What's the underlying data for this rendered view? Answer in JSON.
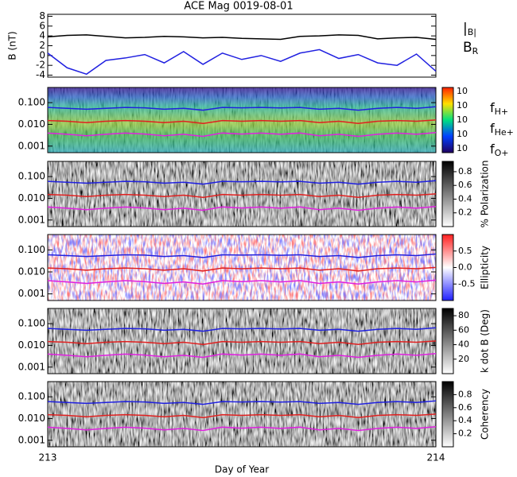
{
  "chart_data": [
    {
      "type": "line",
      "title": "ACE Mag 0019-08-01",
      "ylabel": "B (nT)",
      "x": [
        213,
        213.05,
        213.1,
        213.15,
        213.2,
        213.25,
        213.3,
        213.35,
        213.4,
        213.45,
        213.5,
        213.55,
        213.6,
        213.65,
        213.7,
        213.75,
        213.8,
        213.85,
        213.9,
        213.95,
        214
      ],
      "xlim": [
        213,
        214
      ],
      "ylim": [
        -4.4,
        8.4
      ],
      "yticks": [
        -4,
        -2,
        0,
        2,
        4,
        6,
        8
      ],
      "series": [
        {
          "name": "|B|",
          "color": "#000000",
          "values": [
            3.8,
            4.1,
            4.2,
            3.9,
            3.6,
            3.7,
            3.9,
            3.8,
            3.6,
            3.7,
            3.5,
            3.4,
            3.3,
            3.9,
            4.0,
            4.2,
            4.1,
            3.4,
            3.6,
            3.7,
            3.3
          ]
        },
        {
          "name": "BR",
          "color": "#2020e0",
          "values": [
            0.5,
            -2.5,
            -3.8,
            -1.0,
            -0.5,
            0.2,
            -1.5,
            0.8,
            -1.8,
            0.5,
            -0.8,
            0,
            -1.2,
            0.5,
            1.2,
            -0.6,
            0.2,
            -1.5,
            -2.0,
            0.3,
            -3.2
          ]
        }
      ]
    },
    {
      "type": "spectrogram",
      "log": true,
      "ylim": [
        0.0005,
        0.5
      ],
      "yticks": [
        {
          "value": 0.1,
          "label": "0.100"
        },
        {
          "value": 0.01,
          "label": "0.010"
        },
        0.001
      ],
      "ztick_labels": [
        "10",
        "10",
        "10",
        "10",
        "10"
      ],
      "colormap": "rainbow",
      "series": [
        {
          "name": "fH+",
          "color": "#2020e0",
          "values": [
            0.06,
            0.055,
            0.05,
            0.055,
            0.06,
            0.058,
            0.05,
            0.055,
            0.045,
            0.06,
            0.058,
            0.06,
            0.057,
            0.06,
            0.05,
            0.055,
            0.045,
            0.055,
            0.06,
            0.055,
            0.065
          ]
        },
        {
          "name": "fHe+",
          "color": "#e02020",
          "values": [
            0.015,
            0.014,
            0.012,
            0.014,
            0.015,
            0.014,
            0.012,
            0.014,
            0.011,
            0.015,
            0.014,
            0.015,
            0.014,
            0.015,
            0.012,
            0.014,
            0.011,
            0.014,
            0.015,
            0.014,
            0.016
          ]
        },
        {
          "name": "fO+",
          "color": "#e020e0",
          "values": [
            0.004,
            0.0035,
            0.003,
            0.0035,
            0.004,
            0.0036,
            0.003,
            0.0035,
            0.0028,
            0.004,
            0.0036,
            0.004,
            0.0035,
            0.004,
            0.003,
            0.0035,
            0.0028,
            0.0035,
            0.004,
            0.0035,
            0.0042
          ]
        }
      ]
    },
    {
      "type": "spectrogram",
      "log": true,
      "ylim": [
        0.0005,
        0.5
      ],
      "yticks": [
        {
          "value": 0.1,
          "label": "0.100"
        },
        {
          "value": 0.01,
          "label": "0.010"
        },
        0.001
      ],
      "zlabel": "% Polarization",
      "zlim": [
        0,
        0.95
      ],
      "zticks": [
        0.2,
        0.4,
        0.6,
        0.8
      ],
      "colormap": "gray",
      "series": [
        {
          "name": "fH+",
          "color": "#2020e0",
          "values": [
            0.06,
            0.055,
            0.05,
            0.055,
            0.06,
            0.058,
            0.05,
            0.055,
            0.045,
            0.06,
            0.058,
            0.06,
            0.057,
            0.06,
            0.05,
            0.055,
            0.045,
            0.055,
            0.06,
            0.055,
            0.065
          ]
        },
        {
          "name": "fHe+",
          "color": "#e02020",
          "values": [
            0.015,
            0.014,
            0.012,
            0.014,
            0.015,
            0.014,
            0.012,
            0.014,
            0.011,
            0.015,
            0.014,
            0.015,
            0.014,
            0.015,
            0.012,
            0.014,
            0.011,
            0.014,
            0.015,
            0.014,
            0.016
          ]
        },
        {
          "name": "fO+",
          "color": "#e020e0",
          "values": [
            0.004,
            0.0035,
            0.003,
            0.0035,
            0.004,
            0.0036,
            0.003,
            0.0035,
            0.0028,
            0.004,
            0.0036,
            0.004,
            0.0035,
            0.004,
            0.003,
            0.0035,
            0.0028,
            0.0035,
            0.004,
            0.0035,
            0.0042
          ]
        }
      ]
    },
    {
      "type": "spectrogram",
      "log": true,
      "ylim": [
        0.0005,
        0.5
      ],
      "yticks": [
        {
          "value": 0.1,
          "label": "0.100"
        },
        {
          "value": 0.01,
          "label": "0.010"
        },
        0.001
      ],
      "zlabel": "Ellipticity",
      "zlim": [
        -1,
        1
      ],
      "zticks": [
        -0.5,
        {
          "value": 0,
          "label": "0.0"
        },
        0.5
      ],
      "colormap": "redblue",
      "series": [
        {
          "name": "fH+",
          "color": "#2020e0",
          "values": [
            0.06,
            0.055,
            0.05,
            0.055,
            0.06,
            0.058,
            0.05,
            0.055,
            0.045,
            0.06,
            0.058,
            0.06,
            0.057,
            0.06,
            0.05,
            0.055,
            0.045,
            0.055,
            0.06,
            0.055,
            0.065
          ]
        },
        {
          "name": "fHe+",
          "color": "#e02020",
          "values": [
            0.015,
            0.014,
            0.012,
            0.014,
            0.015,
            0.014,
            0.012,
            0.014,
            0.011,
            0.015,
            0.014,
            0.015,
            0.014,
            0.015,
            0.012,
            0.014,
            0.011,
            0.014,
            0.015,
            0.014,
            0.016
          ]
        },
        {
          "name": "fO+",
          "color": "#e020e0",
          "values": [
            0.004,
            0.0035,
            0.003,
            0.0035,
            0.004,
            0.0036,
            0.003,
            0.0035,
            0.0028,
            0.004,
            0.0036,
            0.004,
            0.0035,
            0.004,
            0.003,
            0.0035,
            0.0028,
            0.0035,
            0.004,
            0.0035,
            0.0042
          ]
        }
      ]
    },
    {
      "type": "spectrogram",
      "log": true,
      "ylim": [
        0.0005,
        0.5
      ],
      "yticks": [
        {
          "value": 0.1,
          "label": "0.100"
        },
        {
          "value": 0.01,
          "label": "0.010"
        },
        0.001
      ],
      "zlabel": "k dot B (Deg)",
      "zlim": [
        0,
        90
      ],
      "zticks": [
        20,
        40,
        60,
        80
      ],
      "colormap": "gray",
      "series": [
        {
          "name": "fH+",
          "color": "#2020e0",
          "values": [
            0.06,
            0.055,
            0.05,
            0.055,
            0.06,
            0.058,
            0.05,
            0.055,
            0.045,
            0.06,
            0.058,
            0.06,
            0.057,
            0.06,
            0.05,
            0.055,
            0.045,
            0.055,
            0.06,
            0.055,
            0.065
          ]
        },
        {
          "name": "fHe+",
          "color": "#e02020",
          "values": [
            0.015,
            0.014,
            0.012,
            0.014,
            0.015,
            0.014,
            0.012,
            0.014,
            0.011,
            0.015,
            0.014,
            0.015,
            0.014,
            0.015,
            0.012,
            0.014,
            0.011,
            0.014,
            0.015,
            0.014,
            0.016
          ]
        },
        {
          "name": "fO+",
          "color": "#e020e0",
          "values": [
            0.004,
            0.0035,
            0.003,
            0.0035,
            0.004,
            0.0036,
            0.003,
            0.0035,
            0.0028,
            0.004,
            0.0036,
            0.004,
            0.0035,
            0.004,
            0.003,
            0.0035,
            0.0028,
            0.0035,
            0.004,
            0.0035,
            0.0042
          ]
        }
      ]
    },
    {
      "type": "spectrogram",
      "log": true,
      "ylim": [
        0.0005,
        0.5
      ],
      "yticks": [
        {
          "value": 0.1,
          "label": "0.100"
        },
        {
          "value": 0.01,
          "label": "0.010"
        },
        0.001
      ],
      "zlabel": "Coherency",
      "zlim": [
        0,
        1
      ],
      "zticks": [
        0.2,
        0.4,
        0.6,
        0.8
      ],
      "colormap": "gray",
      "xlabel": "Day of Year",
      "xticks": [
        213,
        214
      ],
      "series": [
        {
          "name": "fH+",
          "color": "#2020e0",
          "values": [
            0.06,
            0.055,
            0.05,
            0.055,
            0.06,
            0.058,
            0.05,
            0.055,
            0.045,
            0.06,
            0.058,
            0.06,
            0.057,
            0.06,
            0.05,
            0.055,
            0.045,
            0.055,
            0.06,
            0.055,
            0.065
          ]
        },
        {
          "name": "fHe+",
          "color": "#e02020",
          "values": [
            0.015,
            0.014,
            0.012,
            0.014,
            0.015,
            0.014,
            0.012,
            0.014,
            0.011,
            0.015,
            0.014,
            0.015,
            0.014,
            0.015,
            0.012,
            0.014,
            0.011,
            0.014,
            0.015,
            0.014,
            0.016
          ]
        },
        {
          "name": "fO+",
          "color": "#e020e0",
          "values": [
            0.004,
            0.0035,
            0.003,
            0.0035,
            0.004,
            0.0036,
            0.003,
            0.0035,
            0.0028,
            0.004,
            0.0036,
            0.004,
            0.0035,
            0.004,
            0.003,
            0.0035,
            0.0028,
            0.0035,
            0.004,
            0.0035,
            0.0042
          ]
        }
      ]
    }
  ]
}
